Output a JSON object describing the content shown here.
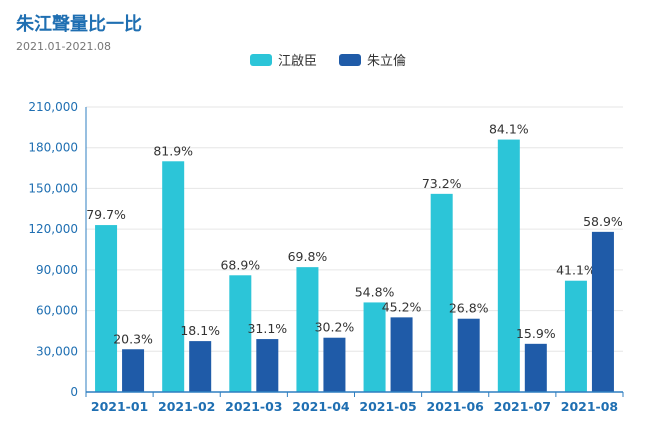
{
  "chart_data": {
    "type": "bar",
    "title": "朱江聲量比一比",
    "subtitle": "2021.01-2021.08",
    "categories": [
      "2021-01",
      "2021-02",
      "2021-03",
      "2021-04",
      "2021-05",
      "2021-06",
      "2021-07",
      "2021-08"
    ],
    "series": [
      {
        "name": "江啟臣",
        "color": "#2cc5d8",
        "values": [
          123000,
          170000,
          86000,
          92000,
          66000,
          146000,
          186000,
          82000
        ],
        "labels": [
          "79.7%",
          "81.9%",
          "68.9%",
          "69.8%",
          "54.8%",
          "73.2%",
          "84.1%",
          "41.1%"
        ]
      },
      {
        "name": "朱立倫",
        "color": "#1f5ba8",
        "values": [
          31500,
          37500,
          39000,
          40000,
          55000,
          54000,
          35500,
          118000
        ],
        "labels": [
          "20.3%",
          "18.1%",
          "31.1%",
          "30.2%",
          "45.2%",
          "26.8%",
          "15.9%",
          "58.9%"
        ]
      }
    ],
    "ylim": [
      0,
      210000
    ],
    "yticks": [
      "0",
      "30,000",
      "60,000",
      "90,000",
      "120,000",
      "150,000",
      "180,000",
      "210,000"
    ],
    "ytick_values": [
      0,
      30000,
      60000,
      90000,
      120000,
      150000,
      180000,
      210000
    ],
    "legend_position": "top-center",
    "grid": true
  }
}
